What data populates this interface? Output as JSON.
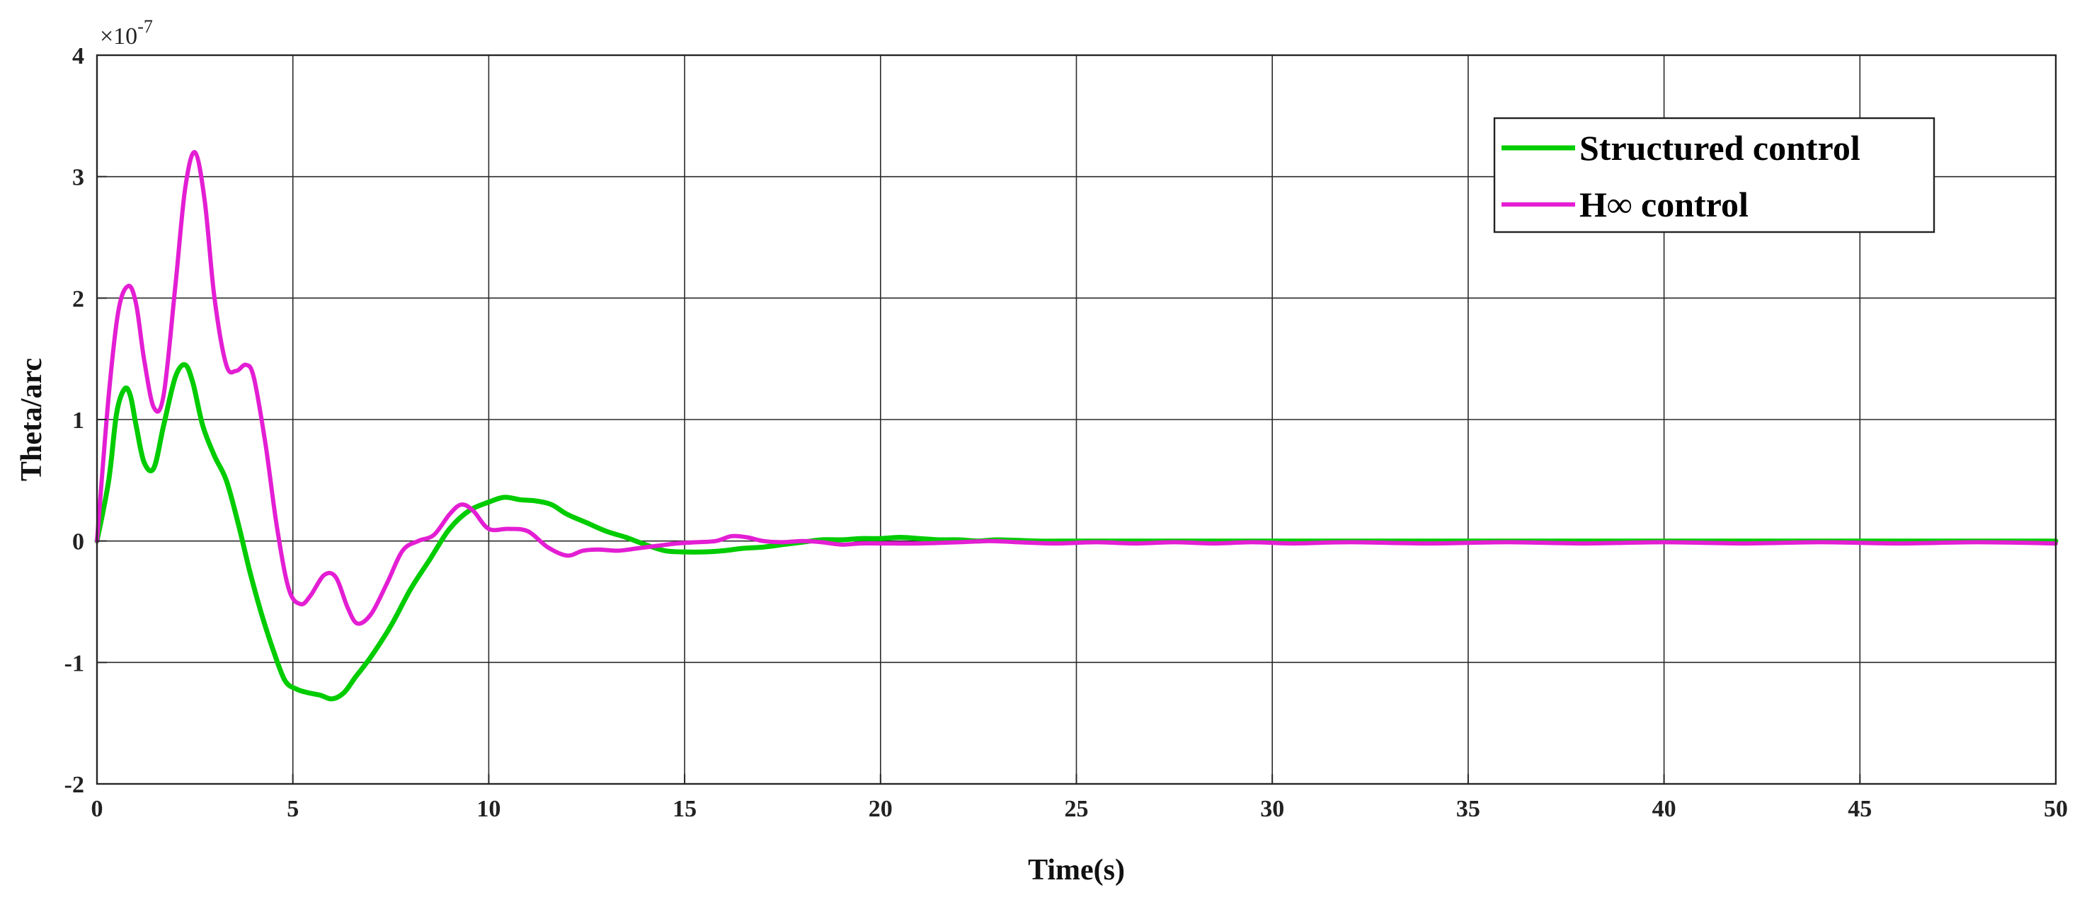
{
  "chart_data": {
    "type": "line",
    "xlabel": "Time(s)",
    "ylabel": "Theta/arc",
    "y_exponent_label": "×10",
    "y_exponent_power": "-7",
    "xlim": [
      0,
      50
    ],
    "ylim": [
      -2,
      4
    ],
    "grid": true,
    "legend_position": "top-right",
    "x_ticks": [
      {
        "value": 0,
        "label": "0"
      },
      {
        "value": 5,
        "label": "5"
      },
      {
        "value": 10,
        "label": "10"
      },
      {
        "value": 15,
        "label": "15"
      },
      {
        "value": 20,
        "label": "20"
      },
      {
        "value": 25,
        "label": "25"
      },
      {
        "value": 30,
        "label": "30"
      },
      {
        "value": 35,
        "label": "35"
      },
      {
        "value": 40,
        "label": "40"
      },
      {
        "value": 45,
        "label": "45"
      },
      {
        "value": 50,
        "label": "50"
      }
    ],
    "y_ticks": [
      {
        "value": -2,
        "label": "-2"
      },
      {
        "value": -1,
        "label": "-1"
      },
      {
        "value": 0,
        "label": "0"
      },
      {
        "value": 1,
        "label": "1"
      },
      {
        "value": 2,
        "label": "2"
      },
      {
        "value": 3,
        "label": "3"
      },
      {
        "value": 4,
        "label": "4"
      }
    ],
    "series": [
      {
        "name": "Structured control",
        "color": "#00cc00",
        "x": [
          0,
          0.3,
          0.5,
          0.7,
          0.85,
          1.0,
          1.2,
          1.45,
          1.7,
          2.0,
          2.25,
          2.45,
          2.7,
          3.0,
          3.3,
          3.6,
          3.9,
          4.2,
          4.5,
          4.8,
          5.1,
          5.4,
          5.7,
          6.0,
          6.3,
          6.6,
          7.0,
          7.5,
          8.0,
          8.5,
          9.0,
          9.5,
          10.0,
          10.4,
          10.8,
          11.2,
          11.6,
          12.0,
          12.5,
          13.0,
          13.5,
          14.0,
          14.5,
          15.0,
          15.5,
          16.0,
          16.5,
          17.0,
          17.5,
          18.0,
          18.5,
          19.0,
          19.5,
          20.0,
          20.5,
          21.0,
          21.5,
          22.0,
          22.5,
          23.0,
          24.0,
          25.0,
          26.0,
          27.0,
          28.0,
          29.0,
          30.0,
          32.0,
          34.0,
          36.0,
          38.0,
          40.0,
          42.0,
          44.0,
          46.0,
          48.0,
          50.0
        ],
        "values": [
          0,
          0.5,
          1.05,
          1.25,
          1.2,
          0.95,
          0.65,
          0.6,
          0.95,
          1.35,
          1.45,
          1.3,
          0.95,
          0.7,
          0.5,
          0.15,
          -0.25,
          -0.6,
          -0.9,
          -1.15,
          -1.22,
          -1.25,
          -1.27,
          -1.3,
          -1.25,
          -1.12,
          -0.95,
          -0.7,
          -0.4,
          -0.15,
          0.1,
          0.25,
          0.32,
          0.36,
          0.34,
          0.33,
          0.3,
          0.22,
          0.15,
          0.08,
          0.03,
          -0.03,
          -0.08,
          -0.09,
          -0.09,
          -0.08,
          -0.06,
          -0.05,
          -0.03,
          -0.01,
          0.01,
          0.01,
          0.02,
          0.02,
          0.03,
          0.02,
          0.01,
          0.01,
          0.0,
          0.01,
          0.0,
          0.0,
          0.0,
          0.0,
          0.0,
          0.0,
          0.0,
          0.0,
          0.0,
          0.0,
          0.0,
          0.0,
          0.0,
          0.0,
          0.0,
          0.0,
          0.0
        ]
      },
      {
        "name": "H∞ control",
        "color": "#e31ed3",
        "x": [
          0,
          0.3,
          0.55,
          0.8,
          1.0,
          1.2,
          1.45,
          1.7,
          2.0,
          2.25,
          2.5,
          2.75,
          3.0,
          3.3,
          3.55,
          3.8,
          4.0,
          4.3,
          4.6,
          4.9,
          5.2,
          5.45,
          5.8,
          6.1,
          6.4,
          6.65,
          7.0,
          7.4,
          7.8,
          8.2,
          8.6,
          9.0,
          9.3,
          9.6,
          10.0,
          10.5,
          11.0,
          11.5,
          12.0,
          12.4,
          12.8,
          13.3,
          13.8,
          14.3,
          14.8,
          15.3,
          15.8,
          16.2,
          16.6,
          17.0,
          17.5,
          18.0,
          18.5,
          19.0,
          19.5,
          20.0,
          21.0,
          22.0,
          22.8,
          23.5,
          24.5,
          25.5,
          26.5,
          27.5,
          28.5,
          29.5,
          30.5,
          32.0,
          34.0,
          36.0,
          38.0,
          40.0,
          42.0,
          44.0,
          46.0,
          48.0,
          50.0
        ],
        "values": [
          0,
          1.2,
          1.9,
          2.1,
          1.95,
          1.5,
          1.1,
          1.2,
          2.1,
          2.9,
          3.2,
          2.8,
          2.0,
          1.45,
          1.4,
          1.45,
          1.35,
          0.8,
          0.1,
          -0.4,
          -0.52,
          -0.45,
          -0.28,
          -0.3,
          -0.55,
          -0.68,
          -0.6,
          -0.35,
          -0.08,
          0.0,
          0.05,
          0.22,
          0.3,
          0.25,
          0.1,
          0.1,
          0.08,
          -0.05,
          -0.12,
          -0.08,
          -0.07,
          -0.08,
          -0.06,
          -0.04,
          -0.02,
          -0.01,
          0.0,
          0.04,
          0.03,
          0.0,
          -0.01,
          0.0,
          -0.01,
          -0.03,
          -0.02,
          -0.02,
          -0.02,
          -0.01,
          0.0,
          -0.01,
          -0.02,
          -0.01,
          -0.02,
          -0.01,
          -0.02,
          -0.01,
          -0.02,
          -0.01,
          -0.02,
          -0.01,
          -0.02,
          -0.01,
          -0.02,
          -0.01,
          -0.02,
          -0.01,
          -0.02
        ]
      }
    ]
  }
}
